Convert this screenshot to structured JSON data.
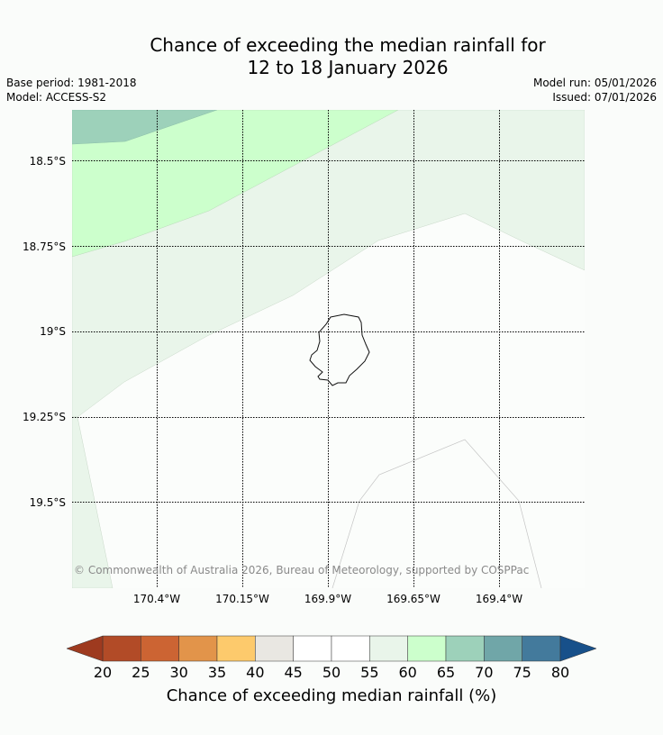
{
  "title_line1": "Chance of exceeding the median rainfall for",
  "title_line2": "12 to 18 January 2026",
  "base_period": "Base period: 1981-2018",
  "model": "Model: ACCESS-S2",
  "model_run": "Model run: 05/01/2026",
  "issued": "Issued: 07/01/2026",
  "lat_labels": [
    "18.5°S",
    "18.75°S",
    "19°S",
    "19.25°S",
    "19.5°S"
  ],
  "lon_labels": [
    "170.4°W",
    "170.15°W",
    "169.9°W",
    "169.65°W",
    "169.4°W"
  ],
  "copyright": "© Commonwealth of Australia 2026, Bureau of Meteorology, supported by COSPPac",
  "colorbar": {
    "title": "Chance of exceeding median rainfall (%)",
    "ticks": [
      "20",
      "25",
      "30",
      "35",
      "40",
      "45",
      "50",
      "55",
      "60",
      "65",
      "70",
      "75",
      "80"
    ],
    "below_color": "#9e3a1f",
    "above_color": "#17508a",
    "colors": [
      "#b24b27",
      "#cc6433",
      "#e2944a",
      "#fdca6c",
      "#e9e7e2",
      "#ffffff",
      "#ffffff",
      "#e9f5ea",
      "#ccffcc",
      "#9dd1ba",
      "#70a6a8",
      "#437a9c"
    ]
  }
}
